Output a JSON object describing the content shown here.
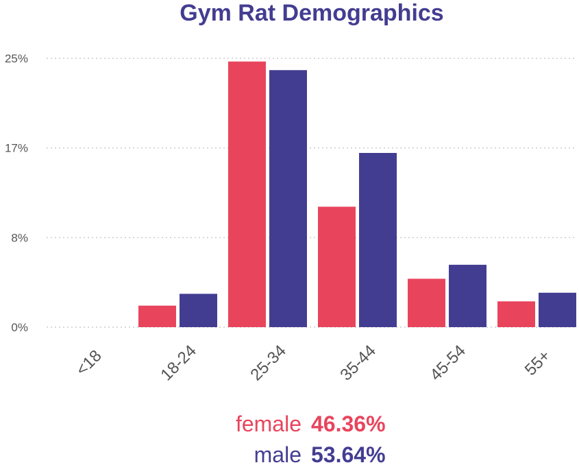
{
  "chart_data": {
    "type": "bar",
    "title": "Gym Rat Demographics",
    "categories": [
      "<18",
      "18-24",
      "25-34",
      "35-44",
      "45-54",
      "55+"
    ],
    "y_ticks": [
      "0%",
      "8%",
      "17%",
      "25%"
    ],
    "ylim": [
      0,
      25
    ],
    "grid": true,
    "legend_position": "bottom",
    "series": [
      {
        "name": "female",
        "share": "46.36%",
        "color": "#e8455d",
        "values": [
          0,
          2.0,
          24.7,
          11.2,
          4.5,
          2.4
        ]
      },
      {
        "name": "male",
        "share": "53.64%",
        "color": "#433d91",
        "values": [
          0,
          3.1,
          23.9,
          16.2,
          5.8,
          3.2
        ]
      }
    ]
  },
  "colors": {
    "title": "#433d91",
    "tick_text": "#555555",
    "grid": "#cccccc"
  }
}
